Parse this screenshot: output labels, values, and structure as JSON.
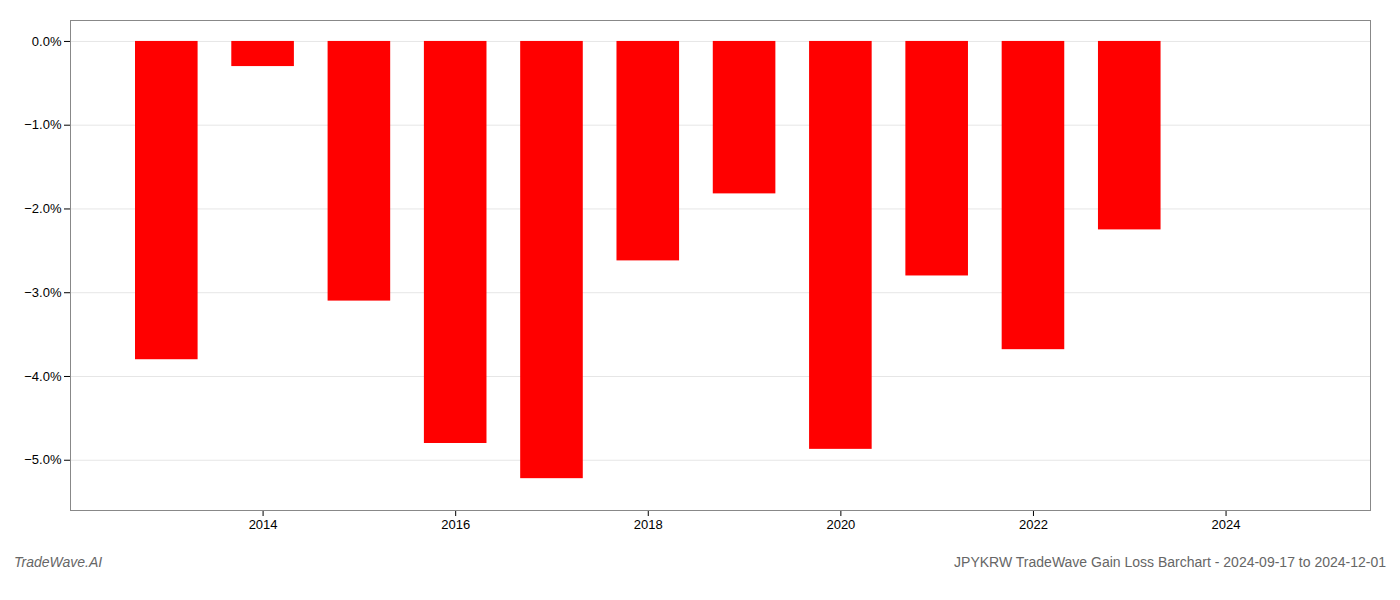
{
  "chart_data": {
    "type": "bar",
    "title": "JPYKRW TradeWave Gain Loss Barchart - 2024-09-17 to 2024-12-01",
    "annotations": [
      "TradeWave.AI"
    ],
    "x": [
      2013,
      2014,
      2015,
      2016,
      2017,
      2018,
      2019,
      2020,
      2021,
      2022,
      2023
    ],
    "values": [
      -3.8,
      -0.3,
      -3.1,
      -4.8,
      -5.22,
      -2.62,
      -1.82,
      -4.87,
      -2.8,
      -3.68,
      -2.25
    ],
    "color": "#FF0000",
    "xlim": [
      2012.0,
      2025.5
    ],
    "xticks": [
      2014,
      2016,
      2018,
      2020,
      2022,
      2024
    ],
    "ylim": [
      -5.6,
      0.25
    ],
    "yticks": [
      {
        "value": 0.0,
        "label": "0.0%"
      },
      {
        "value": -1.0,
        "label": "−1.0%"
      },
      {
        "value": -2.0,
        "label": "−2.0%"
      },
      {
        "value": -3.0,
        "label": "−3.0%"
      },
      {
        "value": -4.0,
        "label": "−4.0%"
      },
      {
        "value": -5.0,
        "label": "−5.0%"
      }
    ],
    "grid": true
  }
}
